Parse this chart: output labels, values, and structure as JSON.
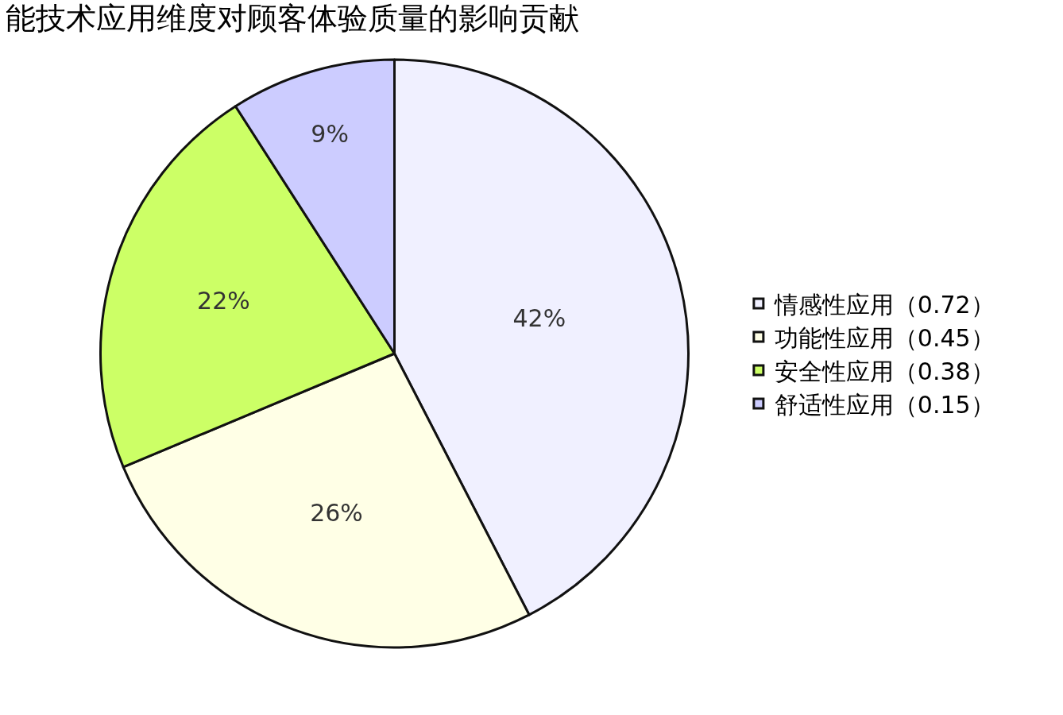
{
  "chart_data": {
    "type": "pie",
    "title": "能技术应用维度对顾客体验质量的影响贡献",
    "categories": [
      "情感性应用（0.72）",
      "功能性应用（0.45）",
      "安全性应用（0.38）",
      "舒适性应用（0.15）"
    ],
    "values": [
      42,
      26,
      22,
      9
    ],
    "value_labels": [
      "42%",
      "26%",
      "22%",
      "9%"
    ],
    "colors": [
      "#f0f0ff",
      "#ffffe6",
      "#ccff66",
      "#ccccff"
    ],
    "legend": "right"
  }
}
